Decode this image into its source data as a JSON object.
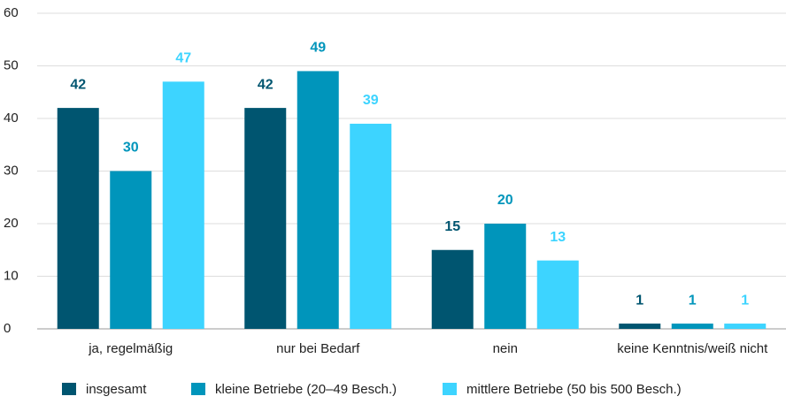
{
  "chart_data": {
    "type": "bar",
    "categories": [
      "ja, regelmäßig",
      "nur bei Bedarf",
      "nein",
      "keine Kenntnis/weiß nicht"
    ],
    "series": [
      {
        "name": "insgesamt",
        "color": "#005570",
        "values": [
          42,
          42,
          15,
          1
        ]
      },
      {
        "name": "kleine Betriebe (20–49 Besch.)",
        "color": "#0095bb",
        "values": [
          30,
          49,
          20,
          1
        ]
      },
      {
        "name": "mittlere Betriebe (50 bis 500 Besch.)",
        "color": "#3dd4ff",
        "values": [
          47,
          39,
          13,
          1
        ]
      }
    ],
    "ylim": [
      0,
      60
    ],
    "yticks": [
      0,
      10,
      20,
      30,
      40,
      50,
      60
    ],
    "grid": true,
    "legend": "bottom"
  }
}
